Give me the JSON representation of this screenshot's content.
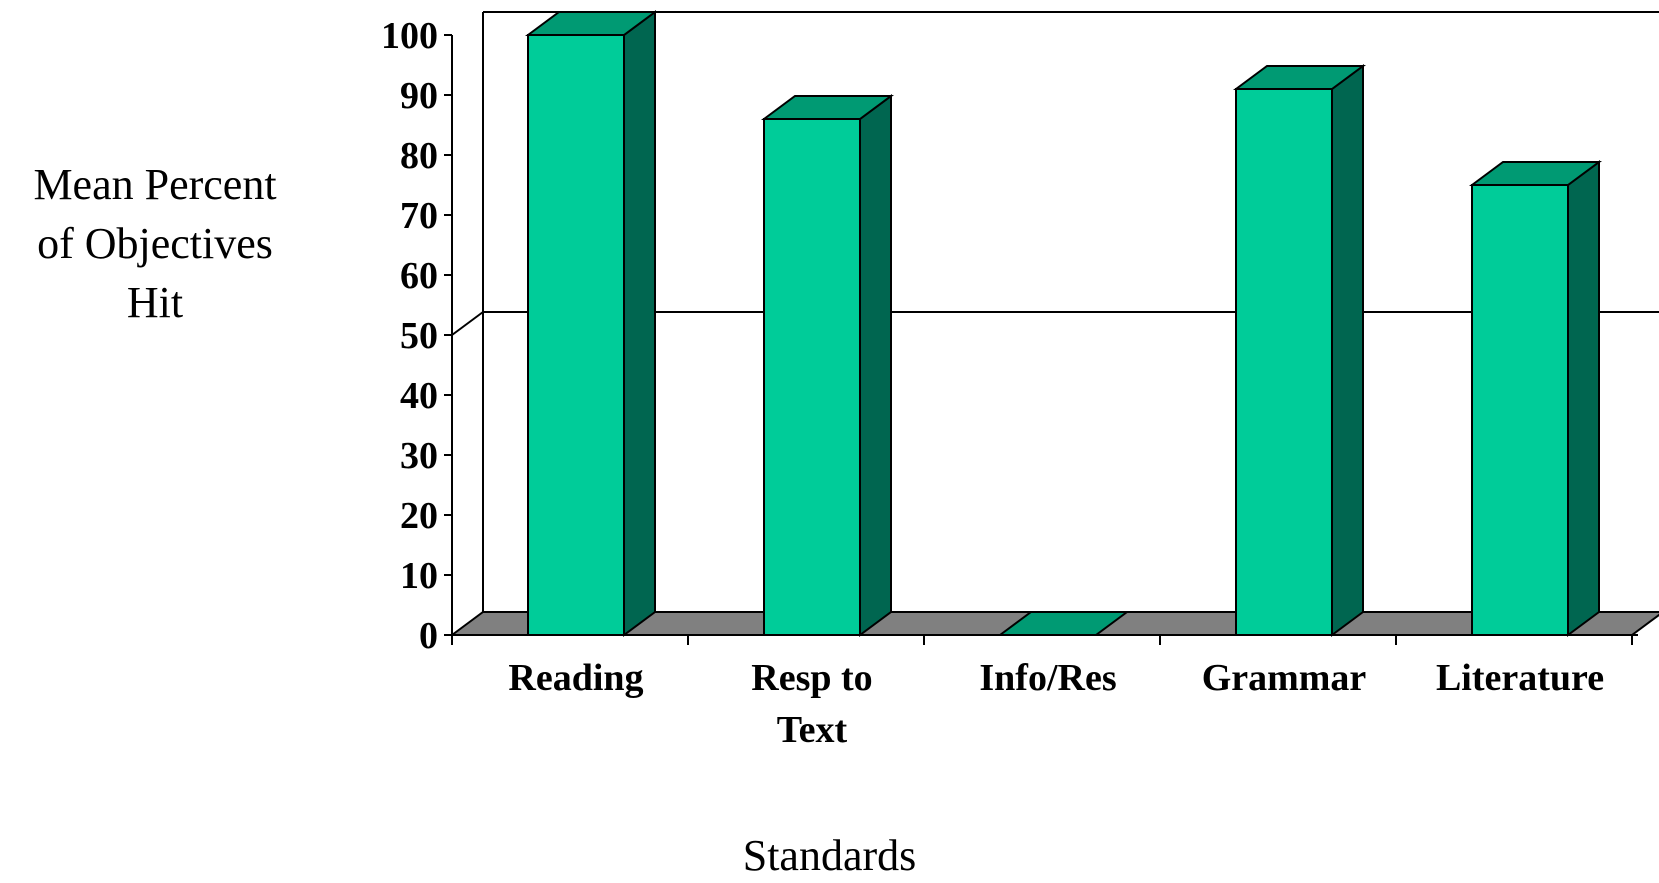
{
  "chart_data": {
    "type": "bar",
    "categories": [
      [
        "Reading"
      ],
      [
        "Resp to",
        "Text"
      ],
      [
        "Info/Res"
      ],
      [
        "Grammar"
      ],
      [
        "Literature"
      ]
    ],
    "values": [
      100,
      86,
      0,
      91,
      75
    ],
    "title": "",
    "xlabel": "Standards",
    "ylabel_lines": [
      "Mean Percent",
      "of Objectives",
      "Hit"
    ],
    "ylim": [
      0,
      100
    ],
    "yticks": [
      0,
      10,
      20,
      30,
      40,
      50,
      60,
      70,
      80,
      90,
      100
    ],
    "reference_line": 50,
    "grid": false,
    "three_d": true,
    "colors": {
      "bar_front": "#00CC99",
      "bar_top": "#009A73",
      "bar_side": "#006650",
      "floor": "#808080",
      "outline": "#000000"
    }
  }
}
